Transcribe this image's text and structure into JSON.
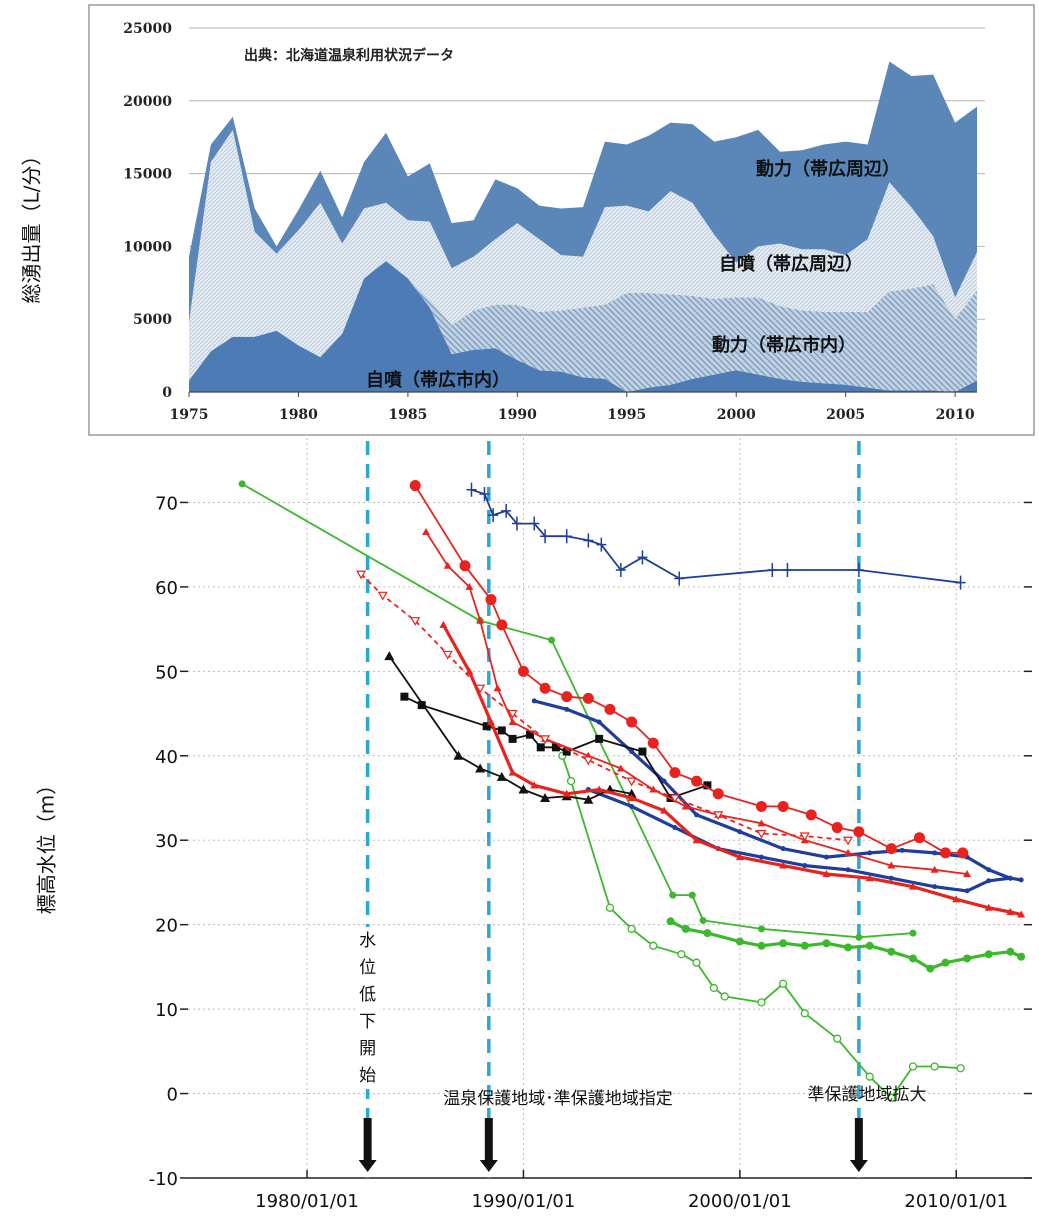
{
  "colors": {
    "top_powered_outer": "#5b86b8",
    "top_natural_outer": "#d8e3ee",
    "top_powered_city": "#a9bfd6",
    "top_natural_city": "#4d7bb6",
    "guide_line": "#2aa7d8",
    "red": "#e8231d",
    "navy": "#1f3d9c",
    "black": "#111111",
    "green": "#3cb82d"
  },
  "chart_data": [
    {
      "type": "area",
      "stacked": true,
      "source_note": "出典：北海道温泉利用状況データ",
      "ylabel": "総湧出量（L/分）",
      "xlim": [
        1975,
        2011
      ],
      "ylim": [
        0,
        25000
      ],
      "xticks": [
        1975,
        1980,
        1985,
        1990,
        1995,
        2000,
        2005,
        2010
      ],
      "yticks": [
        0,
        5000,
        10000,
        15000,
        20000,
        25000
      ],
      "grid": "horizontal",
      "x": [
        1975,
        1976,
        1977,
        1978,
        1979,
        1980,
        1981,
        1982,
        1983,
        1984,
        1985,
        1986,
        1987,
        1988,
        1989,
        1990,
        1991,
        1992,
        1993,
        1994,
        1995,
        1996,
        1997,
        1998,
        1999,
        2000,
        2001,
        2002,
        2003,
        2004,
        2005,
        2006,
        2007,
        2008,
        2009,
        2010,
        2011
      ],
      "series": [
        {
          "name": "自噴（帯広市内）",
          "values": [
            800,
            2800,
            3800,
            3800,
            4200,
            3200,
            2400,
            4000,
            7800,
            9000,
            7800,
            5800,
            2600,
            2900,
            3000,
            2200,
            1500,
            1400,
            1000,
            900,
            0,
            300,
            500,
            900,
            1200,
            1500,
            1200,
            900,
            700,
            600,
            500,
            300,
            100,
            100,
            100,
            0,
            800
          ]
        },
        {
          "name": "動力（帯広市内）",
          "values": [
            0,
            0,
            0,
            0,
            0,
            0,
            0,
            0,
            0,
            0,
            0,
            500,
            2000,
            2700,
            3000,
            3800,
            4000,
            4200,
            4800,
            5100,
            6800,
            6500,
            6200,
            5700,
            5200,
            5000,
            5300,
            5000,
            4900,
            4900,
            5000,
            5200,
            6800,
            7000,
            7300,
            5000,
            6200
          ]
        },
        {
          "name": "自噴（帯広周辺）",
          "values": [
            4000,
            13000,
            14200,
            7200,
            5300,
            7900,
            10600,
            6200,
            4800,
            4000,
            4000,
            5400,
            3900,
            3700,
            4500,
            5600,
            5000,
            3800,
            3500,
            6700,
            6000,
            5600,
            7100,
            6400,
            4400,
            2400,
            3500,
            4300,
            4200,
            4300,
            3900,
            5000,
            7500,
            5600,
            3300,
            1500,
            2600
          ]
        },
        {
          "name": "動力（帯広周辺）",
          "values": [
            4500,
            1200,
            900,
            1600,
            500,
            1400,
            2200,
            1800,
            3200,
            4800,
            3000,
            4000,
            3100,
            2500,
            4100,
            2400,
            2300,
            3200,
            3400,
            4500,
            4200,
            5200,
            4700,
            5400,
            6400,
            8600,
            8000,
            6300,
            6800,
            7200,
            7800,
            6500,
            8300,
            9000,
            11100,
            12000,
            10000
          ]
        }
      ],
      "series_labels": [
        "動力（帯広周辺）",
        "自噴（帯広周辺）",
        "動力（帯広市内）",
        "自噴（帯広市内）"
      ]
    },
    {
      "type": "line",
      "ylabel": "標高水位（m）",
      "xlim": [
        1974.5,
        2013.5
      ],
      "ylim": [
        -10,
        80
      ],
      "yticks": [
        -10,
        0,
        10,
        20,
        30,
        40,
        50,
        60,
        70
      ],
      "xticks": [
        1980,
        1990,
        2000,
        2010
      ],
      "xtick_labels": [
        "1980/01/01",
        "1990/01/01",
        "2000/01/01",
        "2010/01/01"
      ],
      "grid": "dotted",
      "guides": [
        {
          "x": 1982.8,
          "label": "水位低下開始",
          "vertical": true
        },
        {
          "x": 1988.4,
          "label": "温泉保護地域･準保護地域指定",
          "vertical": false
        },
        {
          "x": 2005.5,
          "label": "準保護地域拡大",
          "vertical": false
        }
      ],
      "series": [
        {
          "color": "green",
          "marker": "dot",
          "points": [
            [
              1977.0,
              72.2
            ],
            [
              1988.0,
              56.0
            ],
            [
              1991.3,
              53.7
            ],
            [
              1996.9,
              23.5
            ],
            [
              1997.8,
              23.5
            ],
            [
              1998.3,
              20.5
            ],
            [
              2001.0,
              19.5
            ],
            [
              2005.5,
              18.5
            ],
            [
              2008.0,
              19.0
            ]
          ]
        },
        {
          "color": "green",
          "marker": "open-circle",
          "points": [
            [
              1991.8,
              40.0
            ],
            [
              1992.2,
              37.0
            ],
            [
              1994.0,
              22.0
            ],
            [
              1995.0,
              19.5
            ],
            [
              1996.0,
              17.5
            ],
            [
              1997.3,
              16.5
            ],
            [
              1998.0,
              15.5
            ],
            [
              1998.8,
              12.5
            ],
            [
              1999.3,
              11.5
            ],
            [
              2001.0,
              10.8
            ],
            [
              2002.0,
              13.0
            ],
            [
              2003.0,
              9.5
            ],
            [
              2004.5,
              6.5
            ],
            [
              2006.0,
              2.0
            ],
            [
              2007.0,
              -0.5
            ],
            [
              2008.0,
              3.2
            ],
            [
              2009.0,
              3.2
            ],
            [
              2010.2,
              3.0
            ]
          ]
        },
        {
          "color": "green",
          "marker": "dense-dot",
          "points": [
            [
              1996.8,
              20.4
            ],
            [
              1997.5,
              19.5
            ],
            [
              1998.5,
              19.0
            ],
            [
              2000.0,
              18.0
            ],
            [
              2001.0,
              17.5
            ],
            [
              2002.0,
              17.8
            ],
            [
              2003.0,
              17.5
            ],
            [
              2004.0,
              17.8
            ],
            [
              2005.0,
              17.3
            ],
            [
              2006.0,
              17.5
            ],
            [
              2007.0,
              16.8
            ],
            [
              2008.0,
              16.0
            ],
            [
              2008.8,
              14.8
            ],
            [
              2009.5,
              15.5
            ],
            [
              2010.5,
              16.0
            ],
            [
              2011.5,
              16.5
            ],
            [
              2012.5,
              16.8
            ],
            [
              2013.0,
              16.2
            ]
          ]
        },
        {
          "color": "navy",
          "marker": "plus",
          "points": [
            [
              1987.6,
              71.5
            ],
            [
              1988.2,
              71.0
            ],
            [
              1988.6,
              68.5
            ],
            [
              1989.2,
              69.0
            ],
            [
              1989.7,
              67.5
            ],
            [
              1990.5,
              67.5
            ],
            [
              1991.0,
              66.0
            ],
            [
              1992.0,
              66.0
            ],
            [
              1993.0,
              65.5
            ],
            [
              1993.6,
              65.0
            ],
            [
              1994.5,
              62.0
            ],
            [
              1995.5,
              63.5
            ],
            [
              1997.2,
              61.0
            ],
            [
              2001.5,
              62.0
            ],
            [
              2002.2,
              62.0
            ],
            [
              2005.5,
              62.0
            ],
            [
              2010.2,
              60.5
            ]
          ]
        },
        {
          "color": "navy",
          "marker": "dense",
          "points": [
            [
              1990.5,
              46.5
            ],
            [
              1992.0,
              45.5
            ],
            [
              1993.5,
              44.0
            ],
            [
              1995.0,
              40.5
            ],
            [
              1996.5,
              37.0
            ],
            [
              1998.0,
              33.0
            ],
            [
              2000.0,
              31.0
            ],
            [
              2002.0,
              29.0
            ],
            [
              2004.0,
              28.0
            ],
            [
              2006.0,
              28.5
            ],
            [
              2007.5,
              28.8
            ],
            [
              2009.0,
              28.5
            ],
            [
              2010.5,
              28.0
            ],
            [
              2011.5,
              26.5
            ],
            [
              2012.5,
              25.5
            ],
            [
              2013.0,
              25.3
            ]
          ]
        },
        {
          "color": "navy",
          "marker": "dense",
          "points": [
            [
              1993.0,
              36.0
            ],
            [
              1995.0,
              34.0
            ],
            [
              1997.0,
              31.5
            ],
            [
              1999.0,
              29.0
            ],
            [
              2001.0,
              28.0
            ],
            [
              2003.0,
              27.0
            ],
            [
              2005.0,
              26.5
            ],
            [
              2007.0,
              25.5
            ],
            [
              2009.0,
              24.5
            ],
            [
              2010.5,
              24.0
            ],
            [
              2011.5,
              25.2
            ],
            [
              2012.5,
              25.5
            ]
          ]
        },
        {
          "color": "black",
          "marker": "square",
          "points": [
            [
              1984.5,
              47.0
            ],
            [
              1985.3,
              46.0
            ],
            [
              1988.3,
              43.5
            ],
            [
              1989.0,
              43.0
            ],
            [
              1989.5,
              42.0
            ],
            [
              1990.3,
              42.5
            ],
            [
              1990.8,
              41.0
            ],
            [
              1991.5,
              41.0
            ],
            [
              1992.0,
              40.5
            ],
            [
              1993.5,
              42.0
            ],
            [
              1995.5,
              40.5
            ],
            [
              1996.8,
              35.0
            ],
            [
              1998.5,
              36.5
            ]
          ]
        },
        {
          "color": "black",
          "marker": "triangle",
          "points": [
            [
              1983.8,
              51.8
            ],
            [
              1987.0,
              40.0
            ],
            [
              1988.0,
              38.5
            ],
            [
              1989.0,
              37.5
            ],
            [
              1990.0,
              36.0
            ],
            [
              1991.0,
              35.0
            ],
            [
              1992.0,
              35.2
            ],
            [
              1993.0,
              34.8
            ],
            [
              1994.0,
              36.0
            ],
            [
              1995.0,
              35.5
            ]
          ]
        },
        {
          "color": "red",
          "marker": "big-dot",
          "points": [
            [
              1985.0,
              72.0
            ],
            [
              1987.3,
              62.5
            ],
            [
              1988.5,
              58.5
            ],
            [
              1989.0,
              55.5
            ],
            [
              1990.0,
              50.0
            ],
            [
              1991.0,
              48.0
            ],
            [
              1992.0,
              47.0
            ],
            [
              1993.0,
              46.8
            ],
            [
              1994.0,
              45.5
            ],
            [
              1995.0,
              44.0
            ],
            [
              1996.0,
              41.5
            ],
            [
              1997.0,
              38.0
            ],
            [
              1998.0,
              37.0
            ],
            [
              1999.0,
              35.5
            ],
            [
              2001.0,
              34.0
            ],
            [
              2002.0,
              34.0
            ],
            [
              2003.3,
              33.0
            ],
            [
              2004.5,
              31.5
            ],
            [
              2005.5,
              31.0
            ],
            [
              2007.0,
              29.0
            ],
            [
              2008.3,
              30.3
            ],
            [
              2009.5,
              28.5
            ],
            [
              2010.3,
              28.5
            ]
          ]
        },
        {
          "color": "red",
          "marker": "small-tri",
          "points": [
            [
              1985.5,
              66.5
            ],
            [
              1986.5,
              62.5
            ],
            [
              1987.5,
              60.0
            ],
            [
              1988.0,
              56.0
            ],
            [
              1988.8,
              48.0
            ],
            [
              1989.5,
              44.0
            ],
            [
              1991.0,
              42.0
            ],
            [
              1993.0,
              40.0
            ],
            [
              1994.5,
              38.5
            ],
            [
              1996.0,
              36.0
            ],
            [
              1997.5,
              34.0
            ],
            [
              1999.0,
              33.0
            ],
            [
              2001.0,
              32.0
            ],
            [
              2003.0,
              30.0
            ],
            [
              2005.0,
              28.5
            ],
            [
              2007.0,
              27.0
            ],
            [
              2009.0,
              26.5
            ],
            [
              2010.5,
              26.0
            ]
          ]
        },
        {
          "color": "red",
          "marker": "dense-tri",
          "points": [
            [
              1986.3,
              55.5
            ],
            [
              1987.5,
              50.0
            ],
            [
              1988.5,
              44.0
            ],
            [
              1989.5,
              38.0
            ],
            [
              1990.5,
              36.5
            ],
            [
              1992.0,
              35.5
            ],
            [
              1993.5,
              36.0
            ],
            [
              1995.0,
              35.0
            ],
            [
              1996.5,
              33.5
            ],
            [
              1998.0,
              30.0
            ],
            [
              2000.0,
              28.0
            ],
            [
              2002.0,
              27.0
            ],
            [
              2004.0,
              26.0
            ],
            [
              2006.0,
              25.5
            ],
            [
              2008.0,
              24.5
            ],
            [
              2010.0,
              23.0
            ],
            [
              2011.5,
              22.0
            ],
            [
              2012.5,
              21.5
            ],
            [
              2013.0,
              21.2
            ]
          ]
        },
        {
          "color": "red",
          "marker": "open-tri",
          "dashed": true,
          "points": [
            [
              1982.5,
              61.5
            ],
            [
              1983.5,
              59.0
            ],
            [
              1985.0,
              56.0
            ],
            [
              1986.5,
              52.0
            ],
            [
              1988.0,
              48.0
            ],
            [
              1989.5,
              45.0
            ],
            [
              1991.0,
              42.0
            ],
            [
              1993.0,
              39.5
            ],
            [
              1995.0,
              37.0
            ],
            [
              1997.0,
              35.0
            ],
            [
              1999.0,
              33.0
            ],
            [
              2001.0,
              30.8
            ],
            [
              2003.0,
              30.5
            ],
            [
              2005.0,
              30.0
            ]
          ]
        }
      ]
    }
  ]
}
